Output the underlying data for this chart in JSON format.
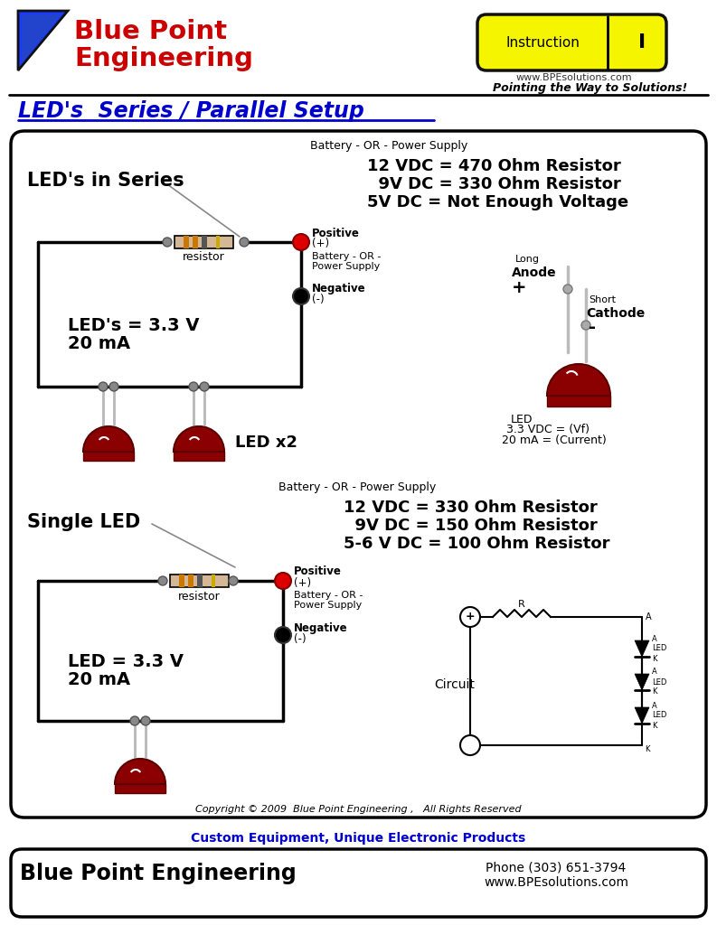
{
  "title": "LED's  Series / Parallel Setup",
  "company_line1": "Blue Point",
  "company_line2": "Engineering",
  "tagline": "Pointing the Way to Solutions!",
  "instruction_label": "Instruction",
  "instruction_num": "I",
  "website_header": "www.BPEsolutions.com",
  "series_label": "LED's in Series",
  "series_battery": "Battery - OR - Power Supply",
  "series_r1": "12 VDC = 470 Ohm Resistor",
  "series_r2": "  9V DC = 330 Ohm Resistor",
  "series_r3": "5V DC = Not Enough Voltage",
  "series_led_v": "LED's = 3.3 V",
  "series_led_a": "20 mA",
  "led_x2": "LED x2",
  "positive_label": "Positive",
  "positive_sign": "(+)",
  "battery_or_ps1": "Battery - OR -",
  "battery_or_ps2": "Power Supply",
  "negative_label": "Negative",
  "negative_sign": "(-)",
  "anode_long": "Long",
  "anode_label": "Anode",
  "anode_sign": "+",
  "cathode_short": "Short",
  "cathode_label": "Cathode",
  "cathode_sign": "-",
  "led_spec1": "LED",
  "led_spec2": "3.3 VDC = (Vf)",
  "led_spec3": "20 mA = (Current)",
  "single_label": "Single LED",
  "single_battery": "Battery - OR - Power Supply",
  "single_r1": "12 VDC = 330 Ohm Resistor",
  "single_r2": "  9V DC = 150 Ohm Resistor",
  "single_r3": "5-6 V DC = 100 Ohm Resistor",
  "single_led_v": "LED = 3.3 V",
  "single_led_a": "20 mA",
  "circuit_label": "Circuit",
  "copyright": "Copyright © 2009  Blue Point Engineering ,   All Rights Reserved",
  "footer_custom": "Custom Equipment, Unique Electronic Products",
  "footer_company": "Blue Point Engineering",
  "footer_phone": "Phone (303) 651-3794",
  "footer_web": "www.BPEsolutions.com",
  "bg_color": "#ffffff",
  "red_color": "#cc0000",
  "blue_color": "#0000cc",
  "led_red": "#8b0000",
  "led_dark": "#5a0000",
  "resistor_bg": "#d4b896",
  "band1": "#cc7700",
  "band2": "#cc7700",
  "band3": "#555555",
  "band4": "#ccaa00",
  "wire_gray": "#888888",
  "pin_gray": "#aaaaaa",
  "dot_gray": "#888888"
}
